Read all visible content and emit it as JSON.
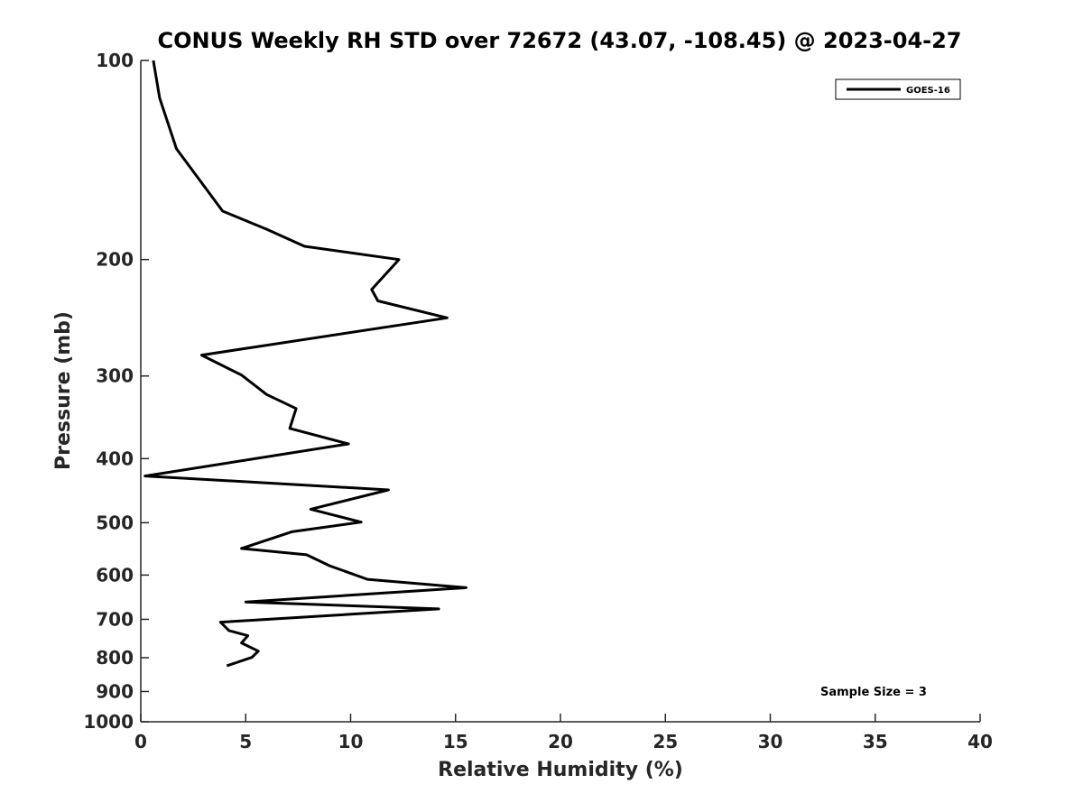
{
  "chart_data": {
    "type": "line",
    "title": "CONUS Weekly RH STD over 72672 (43.07, -108.45) @ 2023-04-27",
    "xlabel": "Relative Humidity (%)",
    "ylabel": "Pressure (mb)",
    "xlim": [
      0,
      40
    ],
    "ylim": [
      100,
      1000
    ],
    "yscale": "log",
    "yreversed": true,
    "grid": false,
    "x_ticks": [
      0,
      5,
      10,
      15,
      20,
      25,
      30,
      35,
      40
    ],
    "y_ticks": [
      100,
      200,
      300,
      400,
      500,
      600,
      700,
      800,
      900,
      1000
    ],
    "legend_position": "top-right",
    "annotation": "Sample Size = 3",
    "series": [
      {
        "name": "GOES-16",
        "color": "#000000",
        "x": [
          0.6,
          0.9,
          1.7,
          3.9,
          6.0,
          7.8,
          12.3,
          11.0,
          11.3,
          14.6,
          2.9,
          4.8,
          6.0,
          7.4,
          7.1,
          9.9,
          0.2,
          11.8,
          8.1,
          10.5,
          7.2,
          4.8,
          7.9,
          9.0,
          10.8,
          15.5,
          5.0,
          14.2,
          6.0,
          3.8,
          4.2,
          5.1,
          4.8,
          5.6,
          5.3,
          4.1
        ],
        "y": [
          100,
          114,
          136,
          169,
          180,
          191,
          200,
          222,
          231,
          245,
          279,
          299,
          320,
          336,
          360,
          380,
          425,
          446,
          477,
          499,
          516,
          547,
          559,
          581,
          609,
          627,
          659,
          675,
          700,
          707,
          728,
          741,
          760,
          782,
          799,
          823
        ]
      }
    ]
  }
}
